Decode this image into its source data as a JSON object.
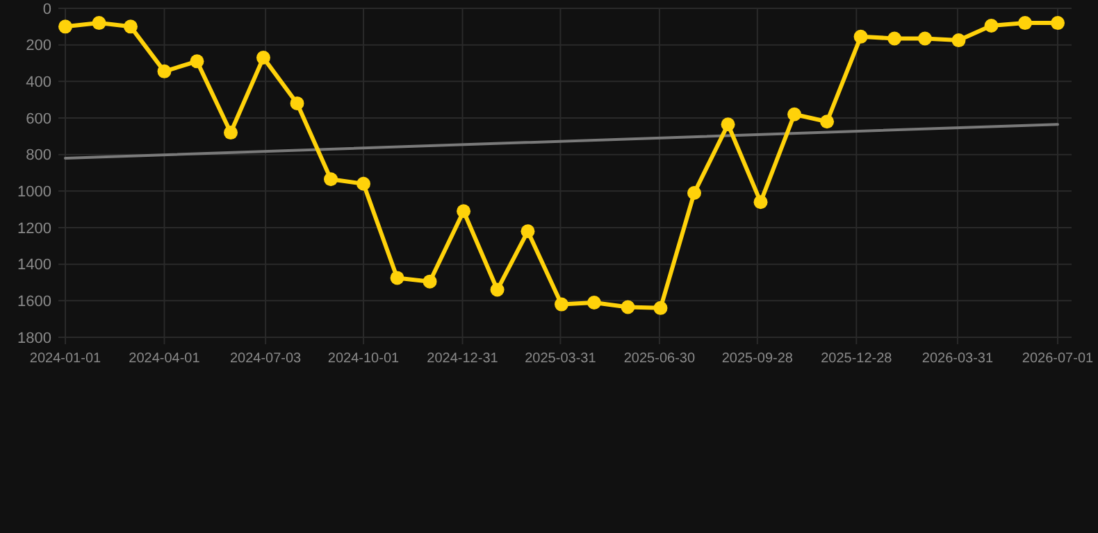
{
  "chart_data": {
    "type": "line",
    "x": [
      "2024-01-01",
      "2024-02-01",
      "2024-03-01",
      "2024-04-01",
      "2024-05-01",
      "2024-06-01",
      "2024-07-01",
      "2024-08-01",
      "2024-09-01",
      "2024-10-01",
      "2024-11-01",
      "2024-12-01",
      "2025-01-01",
      "2025-02-01",
      "2025-03-01",
      "2025-04-01",
      "2025-05-01",
      "2025-06-01",
      "2025-07-01",
      "2025-08-01",
      "2025-09-01",
      "2025-10-01",
      "2025-11-01",
      "2025-12-01",
      "2026-01-01",
      "2026-02-01",
      "2026-03-01",
      "2026-04-01",
      "2026-05-01",
      "2026-06-01",
      "2026-07-01"
    ],
    "series": [
      {
        "color": "#ffd20a",
        "marker": "circle",
        "values": [
          100,
          80,
          100,
          345,
          290,
          680,
          270,
          520,
          935,
          960,
          1475,
          1495,
          1110,
          1540,
          1220,
          1620,
          1610,
          1635,
          1640,
          1010,
          635,
          1060,
          580,
          620,
          155,
          165,
          165,
          175,
          95,
          80,
          80
        ]
      },
      {
        "type": "line",
        "color": "#7a7a7a",
        "marker": "none",
        "x": [
          "2024-01-01",
          "2026-07-01"
        ],
        "values": [
          820,
          635
        ]
      }
    ],
    "xlim": [
      "2024-01-01",
      "2026-07-01"
    ],
    "xticks": [
      "2024-01-01",
      "2024-04-01",
      "2024-07-03",
      "2024-10-01",
      "2024-12-31",
      "2025-03-31",
      "2025-06-30",
      "2025-09-28",
      "2025-12-28",
      "2026-03-31",
      "2026-07-01"
    ],
    "ylim": [
      1800,
      0
    ],
    "yticks": [
      0,
      200,
      400,
      600,
      800,
      1000,
      1200,
      1400,
      1600,
      1800
    ],
    "grid": true
  }
}
